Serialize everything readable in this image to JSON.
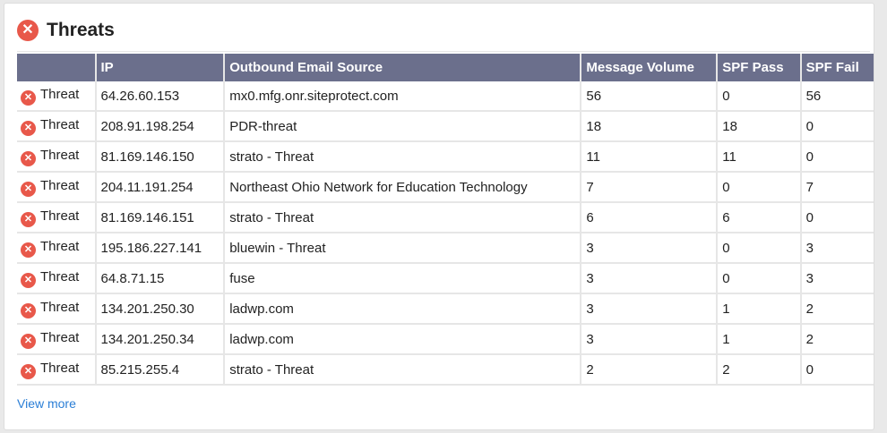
{
  "title": "Threats",
  "accent_color": "#e8584a",
  "header_color": "#6b6f8c",
  "columns": [
    "",
    "IP",
    "Outbound Email Source",
    "Message Volume",
    "SPF Pass",
    "SPF Fail"
  ],
  "rows": [
    {
      "status": "Threat",
      "ip": "64.26.60.153",
      "source": "mx0.mfg.onr.siteprotect.com",
      "volume": "56",
      "pass": "0",
      "fail": "56"
    },
    {
      "status": "Threat",
      "ip": "208.91.198.254",
      "source": "PDR-threat",
      "volume": "18",
      "pass": "18",
      "fail": "0"
    },
    {
      "status": "Threat",
      "ip": "81.169.146.150",
      "source": "strato - Threat",
      "volume": "11",
      "pass": "11",
      "fail": "0"
    },
    {
      "status": "Threat",
      "ip": "204.11.191.254",
      "source": "Northeast Ohio Network for Education Technology",
      "volume": "7",
      "pass": "0",
      "fail": "7"
    },
    {
      "status": "Threat",
      "ip": "81.169.146.151",
      "source": "strato - Threat",
      "volume": "6",
      "pass": "6",
      "fail": "0"
    },
    {
      "status": "Threat",
      "ip": "195.186.227.141",
      "source": "bluewin - Threat",
      "volume": "3",
      "pass": "0",
      "fail": "3"
    },
    {
      "status": "Threat",
      "ip": "64.8.71.15",
      "source": "fuse",
      "volume": "3",
      "pass": "0",
      "fail": "3"
    },
    {
      "status": "Threat",
      "ip": "134.201.250.30",
      "source": "ladwp.com",
      "volume": "3",
      "pass": "1",
      "fail": "2"
    },
    {
      "status": "Threat",
      "ip": "134.201.250.34",
      "source": "ladwp.com",
      "volume": "3",
      "pass": "1",
      "fail": "2"
    },
    {
      "status": "Threat",
      "ip": "85.215.255.4",
      "source": "strato - Threat",
      "volume": "2",
      "pass": "2",
      "fail": "0"
    }
  ],
  "view_more": "View more"
}
